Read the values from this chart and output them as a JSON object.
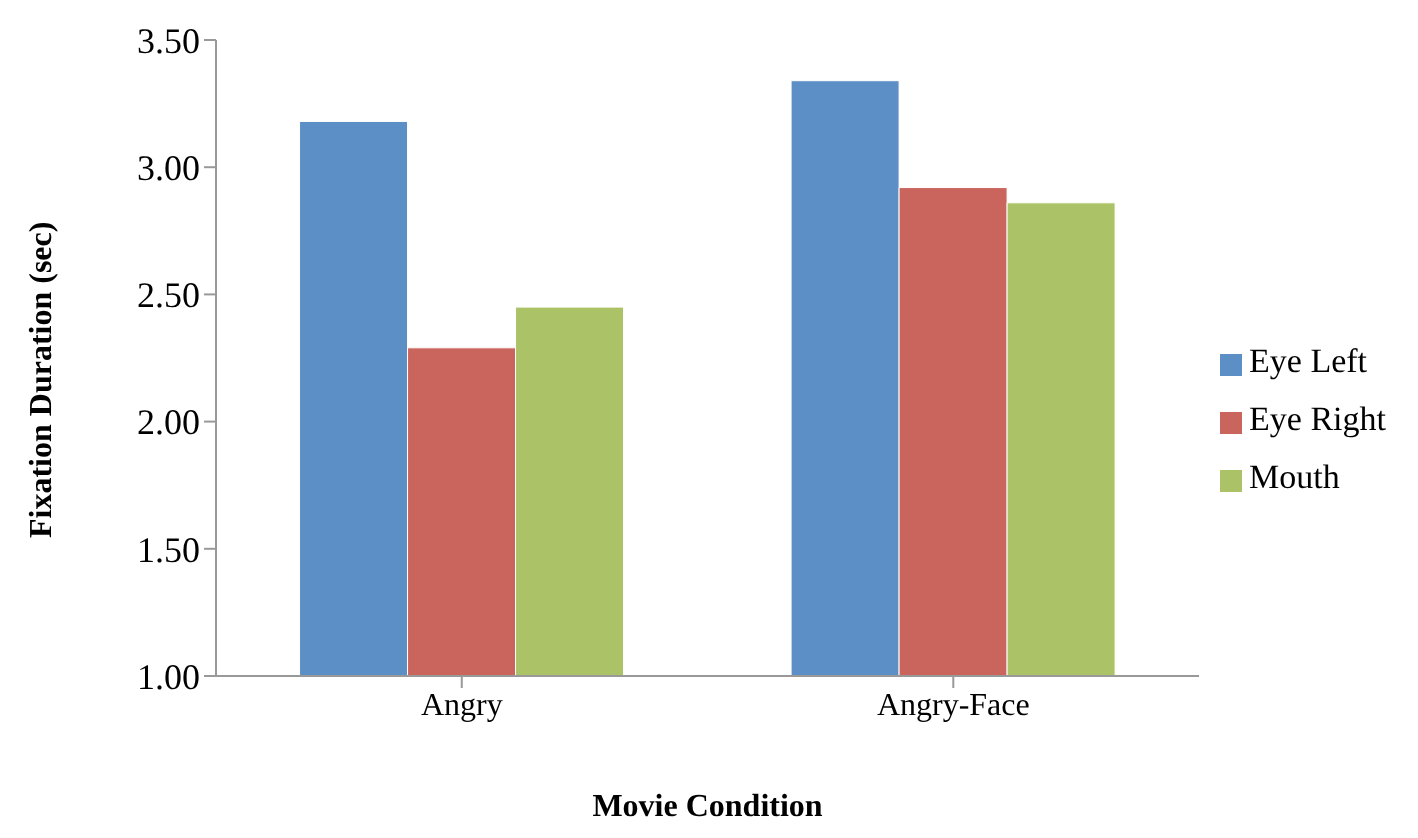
{
  "chart_data": {
    "type": "bar",
    "xlabel": "Movie Condition",
    "ylabel": "Fixation Duration (sec)",
    "categories": [
      "Angry",
      "Angry-Face"
    ],
    "series": [
      {
        "name": "Eye Left",
        "color": "#5b8fc5",
        "values": [
          3.18,
          3.34
        ]
      },
      {
        "name": "Eye Right",
        "color": "#ca655d",
        "values": [
          2.29,
          2.92
        ]
      },
      {
        "name": "Mouth",
        "color": "#abc266",
        "values": [
          2.45,
          2.86
        ]
      }
    ],
    "ylim": [
      1,
      3.5
    ],
    "yticks": [
      {
        "value": 1,
        "label": "1.00"
      },
      {
        "value": 1.5,
        "label": "1.50"
      },
      {
        "value": 2,
        "label": "2.00"
      },
      {
        "value": 2.5,
        "label": "2.50"
      },
      {
        "value": 3,
        "label": "3.00"
      },
      {
        "value": 3.5,
        "label": "3.50"
      }
    ],
    "grid": false,
    "legend": "right"
  }
}
